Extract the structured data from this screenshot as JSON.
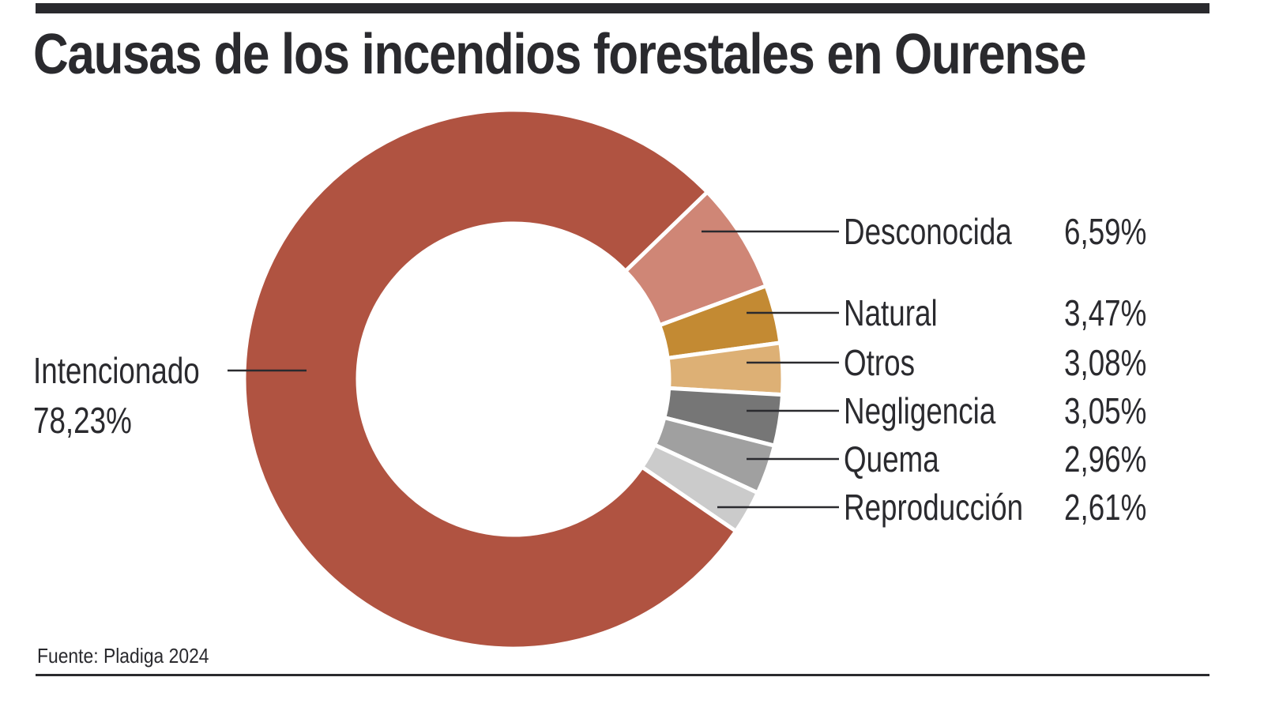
{
  "chart_data": {
    "type": "pie",
    "donut": true,
    "title": "Causas de los incendios forestales en Ourense",
    "source": "Fuente: Pladiga 2024",
    "slices": [
      {
        "label": "Desconocida",
        "value": 6.59,
        "value_text": "6,59%",
        "color": "#cf8676"
      },
      {
        "label": "Natural",
        "value": 3.47,
        "value_text": "3,47%",
        "color": "#c38a33"
      },
      {
        "label": "Otros",
        "value": 3.08,
        "value_text": "3,08%",
        "color": "#ddb075"
      },
      {
        "label": "Negligencia",
        "value": 3.05,
        "value_text": "3,05%",
        "color": "#767676"
      },
      {
        "label": "Quema",
        "value": 2.96,
        "value_text": "2,96%",
        "color": "#a0a0a0"
      },
      {
        "label": "Reproducción",
        "value": 2.61,
        "value_text": "2,61%",
        "color": "#cbcbcb"
      },
      {
        "label": "Intencionado",
        "value": 78.23,
        "value_text": "78,23%",
        "color": "#b05341"
      }
    ],
    "legend": "right-side labels with leader lines"
  }
}
